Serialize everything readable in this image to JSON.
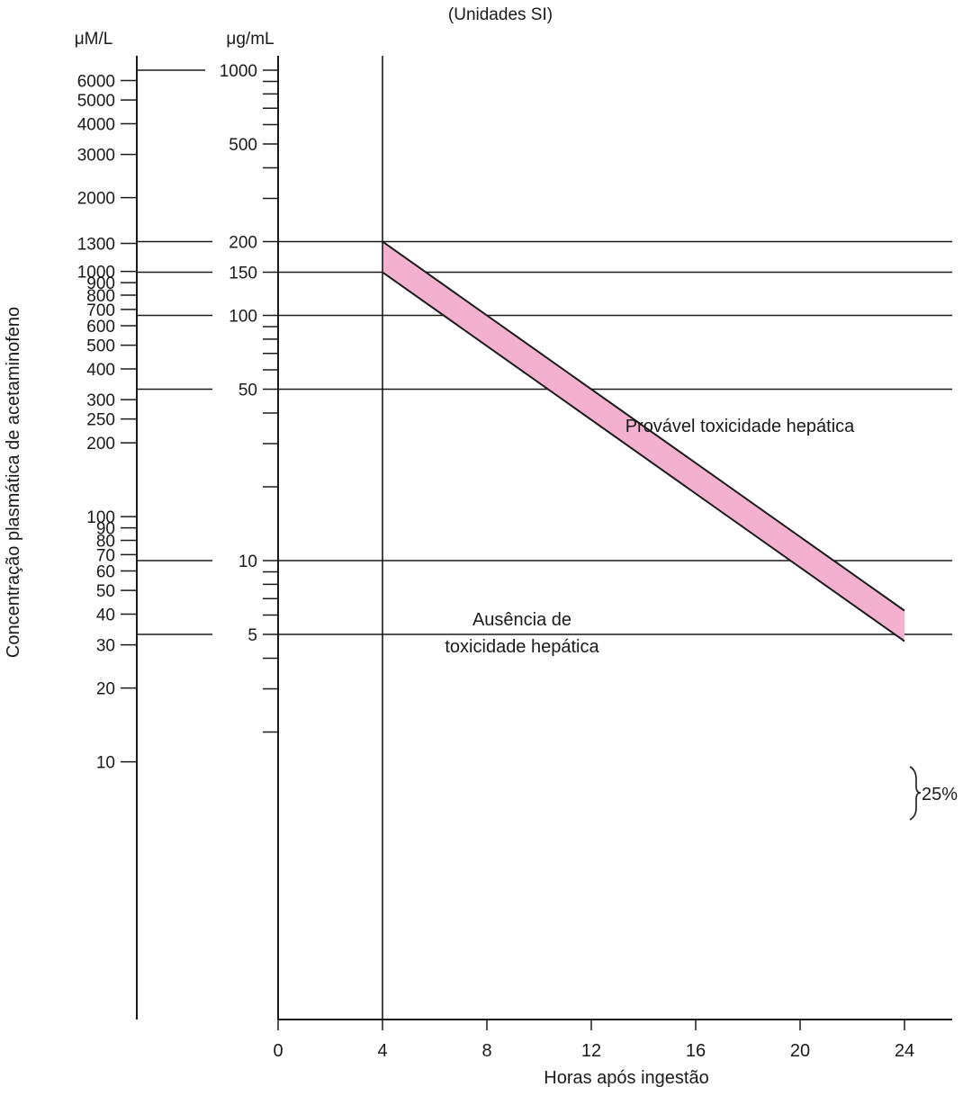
{
  "chart_data": {
    "type": "line",
    "title": "(Unidades SI)",
    "xlabel": "Horas após ingestão",
    "ylabel": "Concentração plasmática de acetaminofeno",
    "y_scale": "log",
    "xlim": [
      0,
      25.8
    ],
    "x_ticks": [
      0,
      4,
      8,
      12,
      16,
      20,
      24
    ],
    "y_axis_left": {
      "unit": "μM/L",
      "tick_labels": [
        "6000",
        "5000",
        "4000",
        "3000",
        "2000",
        "1300",
        "1000",
        "900",
        "800",
        "700",
        "600",
        "500",
        "400",
        "300",
        "250",
        "200",
        "100",
        "90",
        "80",
        "70",
        "60",
        "50",
        "40",
        "30",
        "20",
        "10"
      ]
    },
    "y_axis_right": {
      "unit": "μg/mL",
      "tick_labels": [
        "1000",
        "500",
        "200",
        "150",
        "100",
        "50",
        "10",
        "5"
      ],
      "ylim": [
        1.1,
        1100
      ]
    },
    "reference_levels_ugml": [
      200,
      150,
      100,
      50,
      10,
      5
    ],
    "series": [
      {
        "x": [
          4,
          24
        ],
        "y": [
          200,
          6.25
        ]
      },
      {
        "x": [
          4,
          24
        ],
        "y": [
          150,
          4.69
        ]
      }
    ],
    "band_color": "#f4b0cf",
    "annotations": [
      "Provável toxicidade hepática",
      "Ausência de",
      "toxicidade hepática",
      "25%"
    ]
  }
}
